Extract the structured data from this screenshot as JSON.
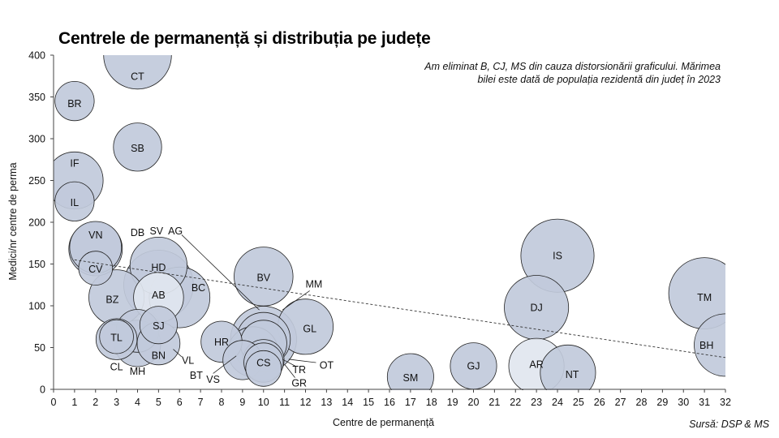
{
  "chart_data": {
    "type": "bubble",
    "title": "Centrele de permanență și distribuția pe județe",
    "xlabel": "Centre de permanență",
    "ylabel": "Medici/nr centre de perma",
    "xlim": [
      0,
      32
    ],
    "ylim": [
      0,
      400
    ],
    "x_ticks": [
      0,
      1,
      2,
      3,
      4,
      5,
      6,
      7,
      8,
      9,
      10,
      11,
      12,
      13,
      14,
      15,
      16,
      17,
      18,
      19,
      20,
      21,
      22,
      23,
      24,
      25,
      26,
      27,
      28,
      29,
      30,
      31,
      32
    ],
    "y_ticks": [
      0,
      50,
      100,
      150,
      200,
      250,
      300,
      350,
      400
    ],
    "note": "Am eliminat B, CJ, MS din cauza distorsionării graficului. Mărimea bilei este dată de populația rezidentă din județ în 2023",
    "source": "Sursă: DSP & MS",
    "trendline": {
      "x": [
        1,
        32
      ],
      "y": [
        155,
        38
      ]
    },
    "points": [
      {
        "label": "CT",
        "x": 4,
        "y": 400,
        "size": 1.9,
        "shade": "dark"
      },
      {
        "label": "BR",
        "x": 1,
        "y": 345,
        "size": 1.1,
        "shade": "dark"
      },
      {
        "label": "SB",
        "x": 4,
        "y": 290,
        "size": 1.35,
        "shade": "dark"
      },
      {
        "label": "IF",
        "x": 1,
        "y": 250,
        "size": 1.6,
        "shade": "dark"
      },
      {
        "label": "IL",
        "x": 1,
        "y": 225,
        "size": 1.1,
        "shade": "dark"
      },
      {
        "label": "VN",
        "x": 2,
        "y": 170,
        "size": 1.45,
        "shade": "dark"
      },
      {
        "label": "DB",
        "x": 2,
        "y": 168,
        "size": 1.5,
        "shade": "dark"
      },
      {
        "label": "CV",
        "x": 2,
        "y": 145,
        "size": 0.95,
        "shade": "dark"
      },
      {
        "label": "HD",
        "x": 5,
        "y": 148,
        "size": 1.6,
        "shade": "dark"
      },
      {
        "label": "SV",
        "x": 5,
        "y": 125,
        "size": 1.95,
        "shade": "dark"
      },
      {
        "label": "BC",
        "x": 6,
        "y": 110,
        "size": 1.7,
        "shade": "dark"
      },
      {
        "label": "BZ",
        "x": 3,
        "y": 110,
        "size": 1.55,
        "shade": "dark"
      },
      {
        "label": "AB",
        "x": 5,
        "y": 110,
        "size": 1.4,
        "shade": "light"
      },
      {
        "label": "SJ",
        "x": 5,
        "y": 77,
        "size": 1.05,
        "shade": "dark"
      },
      {
        "label": "TL",
        "x": 3,
        "y": 63,
        "size": 0.95,
        "shade": "dark"
      },
      {
        "label": "CL",
        "x": 3,
        "y": 60,
        "size": 1.15,
        "shade": "dark"
      },
      {
        "label": "MH",
        "x": 4,
        "y": 70,
        "size": 1.2,
        "shade": "dark"
      },
      {
        "label": "BN",
        "x": 5,
        "y": 55,
        "size": 1.2,
        "shade": "dark"
      },
      {
        "label": "VL",
        "x": 4,
        "y": 55,
        "size": 1.3,
        "shade": "dark"
      },
      {
        "label": "BV",
        "x": 10,
        "y": 135,
        "size": 1.65,
        "shade": "dark"
      },
      {
        "label": "AG",
        "x": 10,
        "y": 60,
        "size": 1.85,
        "shade": "dark"
      },
      {
        "label": "MM",
        "x": 10,
        "y": 60,
        "size": 1.5,
        "shade": "dark"
      },
      {
        "label": "GL",
        "x": 12,
        "y": 75,
        "size": 1.55,
        "shade": "dark"
      },
      {
        "label": "HR",
        "x": 8,
        "y": 57,
        "size": 1.15,
        "shade": "dark"
      },
      {
        "label": "BT",
        "x": 9.5,
        "y": 45,
        "size": 1.4,
        "shade": "dark"
      },
      {
        "label": "VS",
        "x": 9,
        "y": 35,
        "size": 1.1,
        "shade": "dark"
      },
      {
        "label": "OT",
        "x": 10,
        "y": 55,
        "size": 1.3,
        "shade": "dark"
      },
      {
        "label": "TR",
        "x": 10,
        "y": 35,
        "size": 1.15,
        "shade": "dark"
      },
      {
        "label": "GR",
        "x": 10,
        "y": 25,
        "size": 1.0,
        "shade": "dark"
      },
      {
        "label": "CS",
        "x": 10,
        "y": 32,
        "size": 1.1,
        "shade": "dark"
      },
      {
        "label": "IS",
        "x": 24,
        "y": 160,
        "size": 2.05,
        "shade": "dark"
      },
      {
        "label": "DJ",
        "x": 23,
        "y": 98,
        "size": 1.8,
        "shade": "dark"
      },
      {
        "label": "AR",
        "x": 23,
        "y": 28,
        "size": 1.55,
        "shade": "light"
      },
      {
        "label": "NT",
        "x": 24.5,
        "y": 20,
        "size": 1.55,
        "shade": "dark"
      },
      {
        "label": "SM",
        "x": 17,
        "y": 15,
        "size": 1.3,
        "shade": "dark"
      },
      {
        "label": "GJ",
        "x": 20,
        "y": 28,
        "size": 1.3,
        "shade": "dark"
      },
      {
        "label": "TM",
        "x": 31,
        "y": 115,
        "size": 2.0,
        "shade": "dark"
      },
      {
        "label": "BH",
        "x": 32,
        "y": 53,
        "size": 1.75,
        "shade": "dark"
      }
    ],
    "labels": [
      {
        "text": "CT",
        "x": 4,
        "y": 375
      },
      {
        "text": "BR",
        "x": 1,
        "y": 342
      },
      {
        "text": "SB",
        "x": 4,
        "y": 289
      },
      {
        "text": "IF",
        "x": 1,
        "y": 271
      },
      {
        "text": "IL",
        "x": 1,
        "y": 224
      },
      {
        "text": "VN",
        "x": 2,
        "y": 185
      },
      {
        "text": "DB",
        "x": 4,
        "y": 188
      },
      {
        "text": "SV",
        "x": 4.9,
        "y": 190
      },
      {
        "text": "AG",
        "x": 5.8,
        "y": 190
      },
      {
        "text": "CV",
        "x": 2,
        "y": 144
      },
      {
        "text": "HD",
        "x": 5,
        "y": 146
      },
      {
        "text": "BV",
        "x": 10,
        "y": 134
      },
      {
        "text": "MM",
        "x": 12.4,
        "y": 126
      },
      {
        "text": "BC",
        "x": 6.9,
        "y": 122
      },
      {
        "text": "AB",
        "x": 5,
        "y": 113
      },
      {
        "text": "BZ",
        "x": 2.8,
        "y": 108
      },
      {
        "text": "IS",
        "x": 24,
        "y": 160
      },
      {
        "text": "TM",
        "x": 31,
        "y": 110
      },
      {
        "text": "DJ",
        "x": 23,
        "y": 98
      },
      {
        "text": "SJ",
        "x": 5,
        "y": 76
      },
      {
        "text": "GL",
        "x": 12.2,
        "y": 73
      },
      {
        "text": "TL",
        "x": 3,
        "y": 62
      },
      {
        "text": "HR",
        "x": 8,
        "y": 57
      },
      {
        "text": "BH",
        "x": 31.1,
        "y": 53
      },
      {
        "text": "BN",
        "x": 5,
        "y": 41
      },
      {
        "text": "AR",
        "x": 23,
        "y": 30
      },
      {
        "text": "CS",
        "x": 10,
        "y": 32
      },
      {
        "text": "VL",
        "x": 6.4,
        "y": 35
      },
      {
        "text": "GJ",
        "x": 20,
        "y": 28
      },
      {
        "text": "OT",
        "x": 13.0,
        "y": 29
      },
      {
        "text": "CL",
        "x": 3,
        "y": 27
      },
      {
        "text": "MH",
        "x": 4,
        "y": 22
      },
      {
        "text": "NT",
        "x": 24.7,
        "y": 18
      },
      {
        "text": "TR",
        "x": 11.7,
        "y": 24
      },
      {
        "text": "BT",
        "x": 6.8,
        "y": 17
      },
      {
        "text": "SM",
        "x": 17,
        "y": 14
      },
      {
        "text": "VS",
        "x": 7.6,
        "y": 12
      },
      {
        "text": "GR",
        "x": 11.7,
        "y": 8
      }
    ],
    "leaders": [
      {
        "x1": 6.1,
        "y1": 185,
        "x2": 9.8,
        "y2": 95
      },
      {
        "x1": 12.2,
        "y1": 118,
        "x2": 10.9,
        "y2": 95
      },
      {
        "x1": 7.6,
        "y1": 19,
        "x2": 8.7,
        "y2": 40
      },
      {
        "x1": 12.5,
        "y1": 32,
        "x2": 11.2,
        "y2": 36
      },
      {
        "x1": 11.5,
        "y1": 14,
        "x2": 11.0,
        "y2": 30
      },
      {
        "x1": 11.5,
        "y1": 28,
        "x2": 10.9,
        "y2": 36
      },
      {
        "x1": 6.1,
        "y1": 39,
        "x2": 5.7,
        "y2": 48
      }
    ],
    "colors": {
      "bubble_dark": "#c1cadb",
      "bubble_light": "#e1e6ef",
      "bubble_stroke": "#222222",
      "trend": "#333333",
      "axis": "#444444"
    }
  }
}
